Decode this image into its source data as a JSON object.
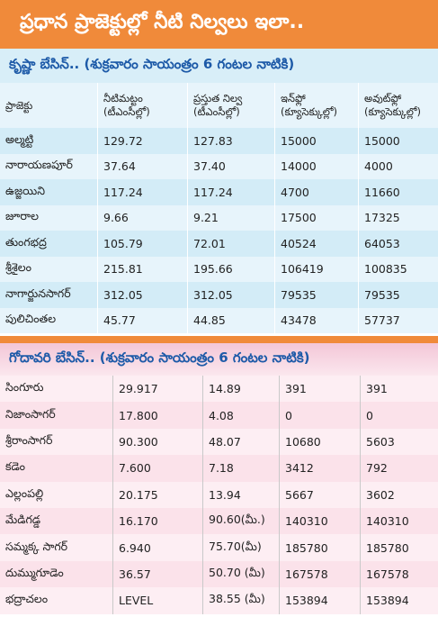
{
  "header": {
    "title": "ప్రధాన ప్రాజెక్టుల్లో నీటి నిల్వలు ఇలా.."
  },
  "krishna": {
    "title": "కృష్ణా బేసిన్.. (శుక్రవారం సాయంత్రం 6 గంటల నాటికి)",
    "columns": [
      "ప్రాజెక్టు",
      "నీటిమట్టం (టీఎంసీల్లో)",
      "ప్రస్తుత నిల్వ (టీఎంసీల్లో)",
      "ఇన్‌ఫ్లో (క్యూసెక్కుల్లో)",
      "అవుట్‌ఫ్లో (క్యూసెక్కుల్లో)"
    ],
    "rows": [
      [
        "అల్మట్టి",
        "129.72",
        "127.83",
        "15000",
        "15000"
      ],
      [
        "నారాయణపూర్",
        "37.64",
        "37.40",
        "14000",
        "4000"
      ],
      [
        "ఉజ్జయిని",
        "117.24",
        "117.24",
        "4700",
        "11660"
      ],
      [
        "జూరాల",
        "9.66",
        "9.21",
        "17500",
        "17325"
      ],
      [
        "తుంగభద్ర",
        "105.79",
        "72.01",
        "40524",
        "64053"
      ],
      [
        "శ్రీశైలం",
        "215.81",
        "195.66",
        "106419",
        "100835"
      ],
      [
        "నాగార్జునసాగర్",
        "312.05",
        "312.05",
        "79535",
        "79535"
      ],
      [
        "పులిచింతల",
        "45.77",
        "44.85",
        "43478",
        "57737"
      ]
    ]
  },
  "godavari": {
    "title": "గోదావరి బేసిన్.. (శుక్రవారం సాయంత్రం 6 గంటల నాటికి)",
    "rows": [
      [
        "సింగూరు",
        "29.917",
        "14.89",
        "391",
        "391"
      ],
      [
        "నిజాంసాగర్",
        "17.800",
        "4.08",
        "0",
        "0"
      ],
      [
        "శ్రీరాంసాగర్",
        "90.300",
        "48.07",
        "10680",
        "5603"
      ],
      [
        "కడెం",
        "7.600",
        "7.18",
        "3412",
        "792"
      ],
      [
        "ఎల్లంపల్లి",
        "20.175",
        "13.94",
        "5667",
        "3602"
      ],
      [
        "మేడిగడ్డ",
        "16.170",
        "90.60(మీ.)",
        "140310",
        "140310"
      ],
      [
        "సమ్మక్క సాగర్",
        "6.940",
        "75.70(మీ)",
        "185780",
        "185780"
      ],
      [
        "దుమ్ముగూడెం",
        "36.57",
        "50.70 (మీ)",
        "167578",
        "167578"
      ],
      [
        "భద్రాచలం",
        "LEVEL",
        "38.55 (మీ)",
        "153894",
        "153894"
      ]
    ]
  }
}
